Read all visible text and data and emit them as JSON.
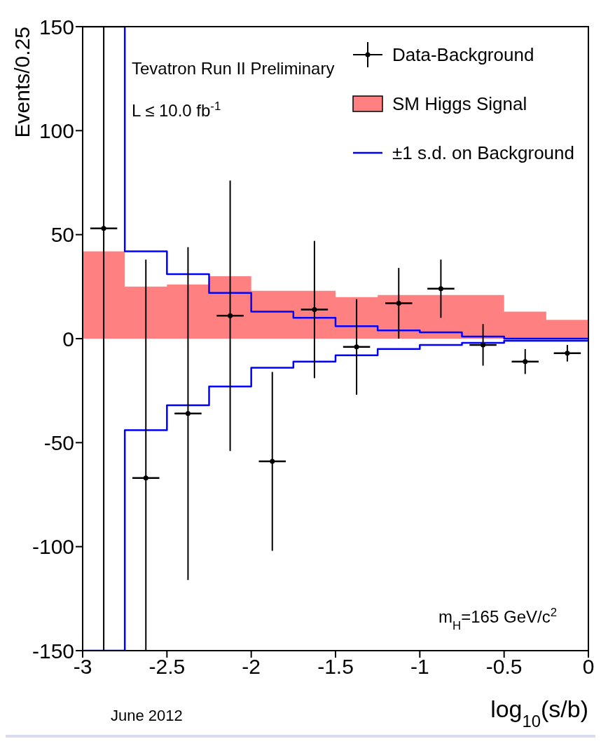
{
  "chart_data": {
    "type": "scatter",
    "xlabel": "log$_{10}$(s/b)",
    "ylabel": "Events/0.25",
    "annotations": [
      "Tevatron Run II Preliminary",
      "L ≤ 10.0 fb$^{-1}$",
      "m$_{H}$=165 GeV/c$^{2}$",
      "June 2012"
    ],
    "series": [
      {
        "name": "Data-Background",
        "marker": "circle",
        "color": "#000000",
        "x": [
          -2.875,
          -2.625,
          -2.375,
          -2.125,
          -1.875,
          -1.625,
          -1.375,
          -1.125,
          -0.875,
          -0.625,
          -0.375,
          -0.125
        ],
        "values": [
          53,
          -67,
          -36,
          11,
          -59,
          14,
          -4,
          17,
          24,
          -3,
          -11,
          -7
        ],
        "errors": [
          [
            -150,
            150
          ],
          [
            -150,
            38
          ],
          80,
          65,
          43,
          33,
          23,
          17,
          14,
          10,
          6,
          4
        ],
        "xerrors": [
          0.08,
          0.08,
          0.08,
          0.08,
          0.08,
          0.08,
          0.08,
          0.08,
          0.08,
          0.08,
          0.08,
          0.08
        ]
      },
      {
        "name": "SM Higgs Signal",
        "type": "area",
        "color": "#ff8080",
        "x": [
          -3,
          -2.75,
          -2.5,
          -2.25,
          -2,
          -1.75,
          -1.5,
          -1.25,
          -1,
          -0.75,
          -0.5,
          -0.25,
          0
        ],
        "values": [
          42,
          25,
          26,
          30,
          23,
          23,
          20,
          21,
          21,
          21,
          13,
          9,
          9
        ]
      },
      {
        "name": "±1 s.d. on Background",
        "type": "step",
        "color": "#0000ff",
        "x": [
          -3,
          -2.75,
          -2.5,
          -2.25,
          -2,
          -1.75,
          -1.5,
          -1.25,
          -1,
          -0.75,
          -0.5,
          -0.25,
          0
        ],
        "values": [
          150,
          42,
          31,
          22,
          13,
          10,
          6,
          4,
          3,
          1,
          0,
          0,
          0
        ]
      },
      {
        "type": "step",
        "color": "#0000ff",
        "x": [
          -3,
          -2.75,
          -2.5,
          -2.25,
          -2,
          -1.75,
          -1.5,
          -1.25,
          -1,
          -0.75,
          -0.5,
          -0.25,
          0
        ],
        "values": [
          -150,
          -44,
          -32,
          -23,
          -14,
          -11,
          -8,
          -5,
          -3,
          -2,
          -1,
          -1,
          -1
        ]
      }
    ],
    "xlim": [
      -3,
      0
    ],
    "xticks": [
      -3,
      -2.5,
      -2,
      -1.5,
      -1,
      -0.5,
      0
    ],
    "ylim": [
      -150,
      150
    ],
    "yticks": [
      -150,
      -100,
      -50,
      0,
      50,
      100,
      150
    ],
    "legend": "top right",
    "line_style": "solid"
  }
}
